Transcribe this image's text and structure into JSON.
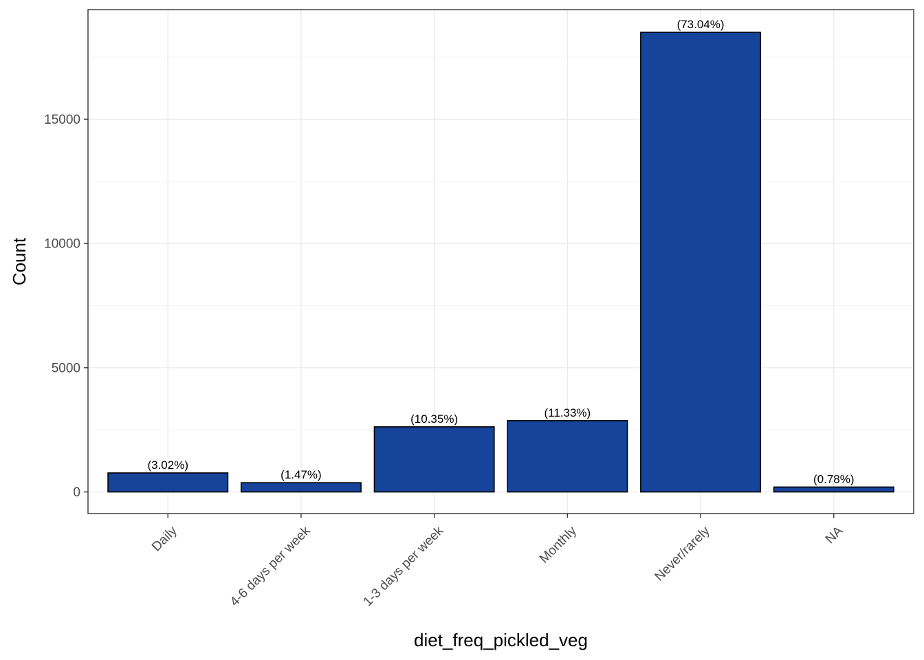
{
  "chart_data": {
    "type": "bar",
    "title": "",
    "xlabel": "diet_freq_pickled_veg",
    "ylabel": "Count",
    "categories": [
      "Daily",
      "4-6 days per week",
      "1-3 days per week",
      "Monthly",
      "Never/rarely",
      "NA"
    ],
    "values": [
      765,
      372,
      2620,
      2870,
      18500,
      198
    ],
    "labels": [
      "(3.02%)",
      "(1.47%)",
      "(10.35%)",
      "(11.33%)",
      "(73.04%)",
      "(0.78%)"
    ],
    "yticks": [
      0,
      5000,
      10000,
      15000
    ],
    "ylim": [
      -870,
      19410
    ],
    "grid": true,
    "legend": "none",
    "colors": {
      "bar_fill": "#17449b",
      "bar_stroke": "#000000",
      "grid_major": "#ebebeb",
      "grid_minor": "#f5f5f5",
      "panel_border": "#333333"
    }
  }
}
